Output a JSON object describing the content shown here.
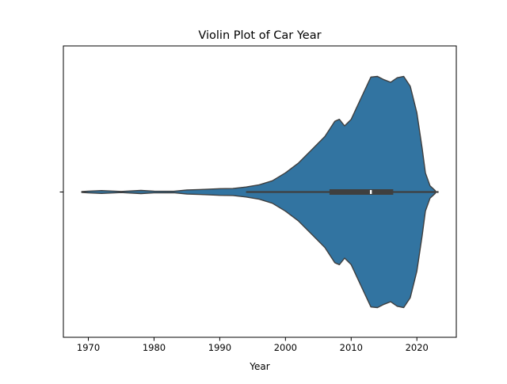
{
  "chart_data": {
    "type": "violin",
    "title": "Violin Plot of Car Year",
    "xlabel": "Year",
    "ylabel": "",
    "xlim": [
      1966.2,
      2026.0
    ],
    "xticks": [
      1970,
      1980,
      1990,
      2000,
      2010,
      2020
    ],
    "xtick_labels": [
      "1970",
      "1980",
      "1990",
      "2000",
      "2010",
      "2020"
    ],
    "orientation": "horizontal",
    "grid": false,
    "legend": "none",
    "colors": {
      "violin_fill": "#3274a1",
      "edge": "#3f3f3f",
      "box": "#3f3f3f",
      "median": "#ffffff"
    },
    "density": {
      "year": [
        1969.0,
        1970.0,
        1972.0,
        1975.0,
        1978.0,
        1980.0,
        1983.0,
        1985.0,
        1988.0,
        1990.0,
        1992.0,
        1994.0,
        1996.0,
        1998.0,
        2000.0,
        2002.0,
        2004.0,
        2006.0,
        2007.5,
        2008.2,
        2009.0,
        2010.0,
        2011.5,
        2013.0,
        2014.0,
        2015.0,
        2016.0,
        2017.0,
        2018.0,
        2019.0,
        2020.0,
        2020.8,
        2021.3,
        2022.0,
        2022.8
      ],
      "value": [
        0.004,
        0.01,
        0.016,
        0.006,
        0.018,
        0.01,
        0.008,
        0.023,
        0.03,
        0.037,
        0.039,
        0.056,
        0.081,
        0.126,
        0.215,
        0.326,
        0.474,
        0.622,
        0.793,
        0.815,
        0.741,
        0.815,
        1.052,
        1.289,
        1.296,
        1.259,
        1.23,
        1.281,
        1.296,
        1.185,
        0.889,
        0.489,
        0.215,
        0.07,
        0.015
      ]
    },
    "box": {
      "min": 1994,
      "q1": 2006.7,
      "median": 2013,
      "q3": 2016.4,
      "max": 2023.3
    }
  }
}
